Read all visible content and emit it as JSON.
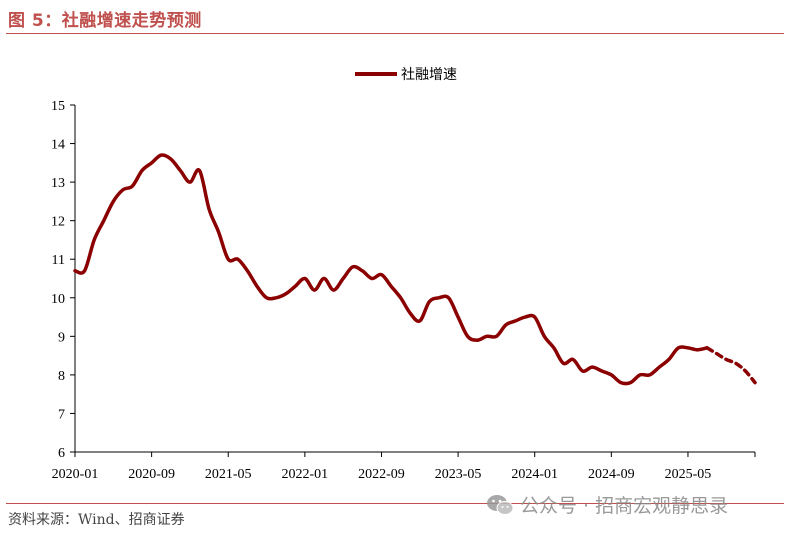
{
  "header": {
    "title": "图 5：社融增速走势预测"
  },
  "footer": {
    "source": "资料来源：Wind、招商证券",
    "watermark": "公众号 · 招商宏观静思录"
  },
  "chart_data": {
    "type": "line",
    "title": "",
    "xlabel": "",
    "ylabel": "",
    "ylim": [
      6,
      15
    ],
    "yticks": [
      6,
      7,
      8,
      9,
      10,
      11,
      12,
      13,
      14,
      15
    ],
    "xticks": [
      "2020-01",
      "2020-09",
      "2021-05",
      "2022-01",
      "2022-09",
      "2023-05",
      "2024-01",
      "2024-09",
      "2025-05"
    ],
    "x_range": [
      "2020-01",
      "2025-12"
    ],
    "legend_position": "top-center",
    "grid": false,
    "series": [
      {
        "name": "社融增速",
        "color": "#8b0000",
        "actual": {
          "x": [
            "2020-01",
            "2020-02",
            "2020-03",
            "2020-04",
            "2020-05",
            "2020-06",
            "2020-07",
            "2020-08",
            "2020-09",
            "2020-10",
            "2020-11",
            "2020-12",
            "2021-01",
            "2021-02",
            "2021-03",
            "2021-04",
            "2021-05",
            "2021-06",
            "2021-07",
            "2021-08",
            "2021-09",
            "2021-10",
            "2021-11",
            "2021-12",
            "2022-01",
            "2022-02",
            "2022-03",
            "2022-04",
            "2022-05",
            "2022-06",
            "2022-07",
            "2022-08",
            "2022-09",
            "2022-10",
            "2022-11",
            "2022-12",
            "2023-01",
            "2023-02",
            "2023-03",
            "2023-04",
            "2023-05",
            "2023-06",
            "2023-07",
            "2023-08",
            "2023-09",
            "2023-10",
            "2023-11",
            "2023-12",
            "2024-01",
            "2024-02",
            "2024-03",
            "2024-04",
            "2024-05",
            "2024-06",
            "2024-07",
            "2024-08",
            "2024-09",
            "2024-10",
            "2024-11",
            "2024-12",
            "2025-01",
            "2025-02",
            "2025-03",
            "2025-04",
            "2025-05",
            "2025-06",
            "2025-07"
          ],
          "y": [
            10.7,
            10.7,
            11.5,
            12.0,
            12.5,
            12.8,
            12.9,
            13.3,
            13.5,
            13.7,
            13.6,
            13.3,
            13.0,
            13.3,
            12.3,
            11.7,
            11.0,
            11.0,
            10.7,
            10.3,
            10.0,
            10.0,
            10.1,
            10.3,
            10.5,
            10.2,
            10.5,
            10.2,
            10.5,
            10.8,
            10.7,
            10.5,
            10.6,
            10.3,
            10.0,
            9.6,
            9.4,
            9.9,
            10.0,
            10.0,
            9.5,
            9.0,
            8.9,
            9.0,
            9.0,
            9.3,
            9.4,
            9.5,
            9.5,
            9.0,
            8.7,
            8.3,
            8.4,
            8.1,
            8.2,
            8.1,
            8.0,
            7.8,
            7.8,
            8.0,
            8.0,
            8.2,
            8.4,
            8.7,
            8.7,
            8.65,
            8.7
          ]
        },
        "forecast": {
          "x": [
            "2025-07",
            "2025-08",
            "2025-09",
            "2025-10",
            "2025-11",
            "2025-12"
          ],
          "y": [
            8.7,
            8.55,
            8.4,
            8.3,
            8.1,
            7.8
          ]
        }
      }
    ]
  }
}
